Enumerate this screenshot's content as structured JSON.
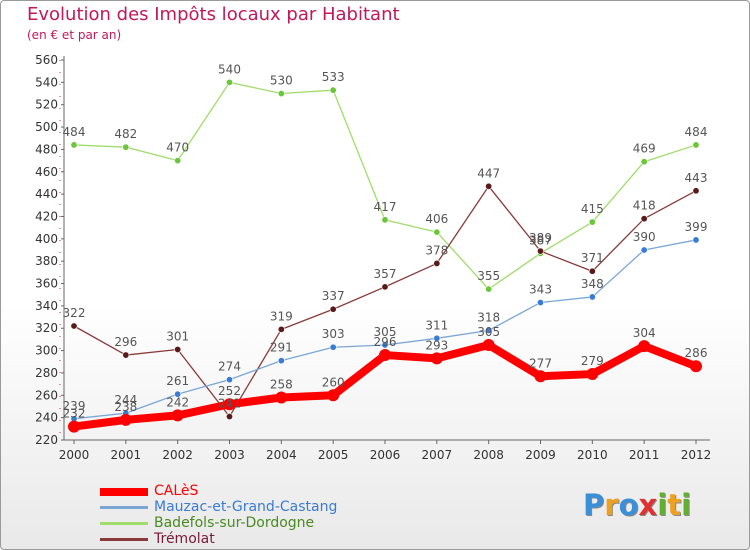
{
  "title": "Evolution des Impôts locaux par Habitant",
  "subtitle": "(en € et par an)",
  "logo": {
    "letters": [
      "P",
      "r",
      "o",
      "x",
      "i",
      "t",
      "i"
    ],
    "colors": [
      "#3a8fd8",
      "#f0a020",
      "#3a8fd8",
      "#e03030",
      "#60b030",
      "#f0a020",
      "#60b030"
    ]
  },
  "chart_data": {
    "type": "line",
    "title": "Evolution des Impôts locaux par Habitant",
    "subtitle": "(en € et par an)",
    "xlabel": "",
    "ylabel": "",
    "ylim": [
      220,
      560
    ],
    "ytick_step": 20,
    "yticks": [
      "220",
      "240",
      "260",
      "280",
      "300",
      "320",
      "340",
      "360",
      "380",
      "400",
      "420",
      "440",
      "460",
      "480",
      "500",
      "520",
      "540",
      "560"
    ],
    "x": [
      "2000",
      "2001",
      "2002",
      "2003",
      "2004",
      "2005",
      "2006",
      "2007",
      "2008",
      "2009",
      "2010",
      "2011",
      "2012"
    ],
    "grid": false,
    "legend": "bottom-left",
    "series": [
      {
        "name": "CALèS",
        "color": "#ff0000",
        "marker": "#ff0000",
        "labels": [
          "232",
          "238",
          "242",
          "252",
          "258",
          "260",
          "296",
          "293",
          "305",
          "277",
          "279",
          "304",
          "286"
        ],
        "values": [
          232,
          238,
          242,
          252,
          258,
          260,
          296,
          293,
          305,
          277,
          279,
          304,
          286
        ],
        "thick": true
      },
      {
        "name": "Mauzac-et-Grand-Castang",
        "color": "#7aa6d6",
        "marker": "#3a7bd5",
        "labels": [
          "239",
          "244",
          "261",
          "274",
          "291",
          "303",
          "305",
          "311",
          "318",
          "343",
          "348",
          "390",
          "399"
        ],
        "values": [
          239,
          244,
          261,
          274,
          291,
          303,
          305,
          311,
          318,
          343,
          348,
          390,
          399
        ],
        "thick": false
      },
      {
        "name": "Badefols-sur-Dordogne",
        "color": "#a0dc6a",
        "marker": "#6cc63a",
        "labels": [
          "484",
          "482",
          "470",
          "540",
          "530",
          "533",
          "417",
          "406",
          "355",
          "387",
          "415",
          "469",
          "484"
        ],
        "values": [
          484,
          482,
          470,
          540,
          530,
          533,
          417,
          406,
          355,
          387,
          415,
          469,
          484
        ],
        "thick": false
      },
      {
        "name": "Trémolat",
        "color": "#8a3a3a",
        "marker": "#5a1a1a",
        "labels": [
          "322",
          "296",
          "301",
          "241",
          "319",
          "337",
          "357",
          "378",
          "447",
          "389",
          "371",
          "418",
          "443"
        ],
        "values": [
          322,
          296,
          301,
          241,
          319,
          337,
          357,
          378,
          447,
          389,
          371,
          418,
          443
        ],
        "thick": false
      }
    ]
  }
}
